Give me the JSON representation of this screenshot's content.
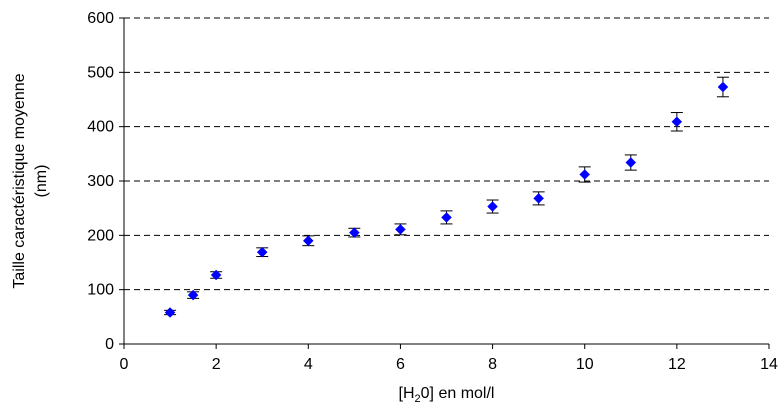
{
  "chart_data": {
    "type": "scatter",
    "title": "",
    "xlabel": {
      "prefix": "[H",
      "subscript": "2",
      "suffix": "0] en mol/l"
    },
    "ylabel": [
      "Taille caractéristique moyenne",
      "(nm)"
    ],
    "xlim": [
      0,
      14
    ],
    "ylim": [
      0,
      600
    ],
    "xticks": [
      0,
      2,
      4,
      6,
      8,
      10,
      12,
      14
    ],
    "yticks": [
      0,
      100,
      200,
      300,
      400,
      500,
      600
    ],
    "grid": "horizontal dashed",
    "legend": "none",
    "marker": "diamond",
    "marker_color": "#0000ff",
    "error_bar_color": "#000000",
    "series": [
      {
        "x": [
          1,
          1.5,
          2,
          3,
          4,
          5,
          6,
          7,
          8,
          9,
          10,
          11,
          12,
          13
        ],
        "y": [
          58,
          90,
          127,
          169,
          190,
          205,
          211,
          233,
          253,
          268,
          312,
          334,
          409,
          473
        ],
        "error": [
          4,
          6,
          6,
          8,
          9,
          8,
          10,
          12,
          12,
          12,
          14,
          14,
          17,
          18
        ]
      }
    ]
  }
}
